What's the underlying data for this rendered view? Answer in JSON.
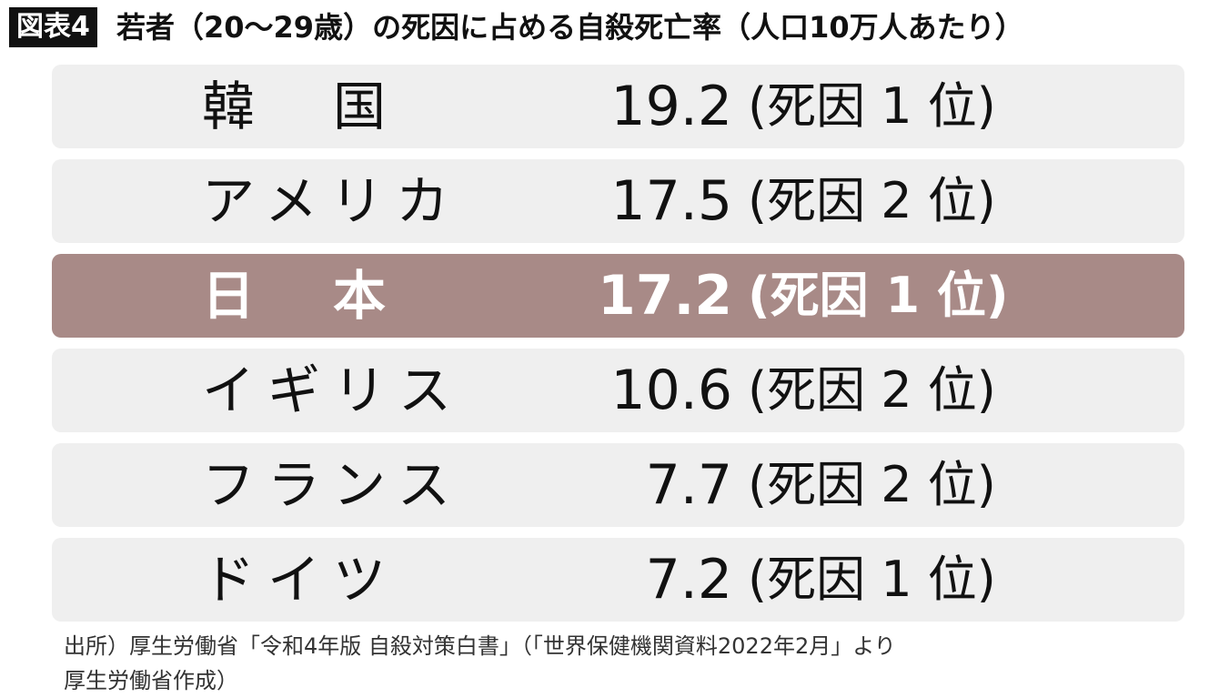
{
  "header": {
    "badge": "図表4",
    "title": "若者（20〜29歳）の死因に占める自殺死亡率（人口10万人あたり）"
  },
  "table": {
    "highlight_row": 2,
    "row_color": "#efefef",
    "highlight_color": "#a88a87",
    "rows": [
      [
        "韓　国",
        "19.2",
        "(死因 1 位)"
      ],
      [
        "アメリカ",
        "17.5",
        "(死因 2 位)"
      ],
      [
        "日　本",
        "17.2",
        "(死因 1 位)"
      ],
      [
        "イギリス",
        "10.6",
        "(死因 2 位)"
      ],
      [
        "フランス",
        "7.7",
        "(死因 2 位)"
      ],
      [
        "ドイツ",
        "7.2",
        "(死因 1 位)"
      ]
    ]
  },
  "footer": {
    "lines": [
      "出所）厚生労働省「令和4年版 自殺対策白書」（「世界保健機関資料2022年2月」より",
      "厚生労働省作成）"
    ]
  }
}
